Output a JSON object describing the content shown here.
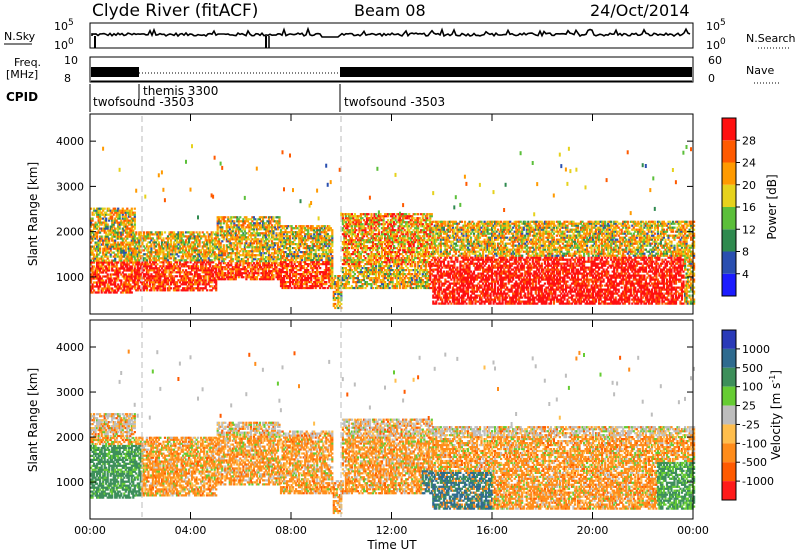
{
  "header": {
    "station": "Clyde River (fitACF)",
    "beam": "Beam 08",
    "date": "24/Oct/2014"
  },
  "panels": {
    "noise": {
      "left_label": "N.Sky",
      "left_ticks": [
        "10^5",
        "10^0"
      ],
      "right_ticks": [
        "10^5",
        "10^0"
      ],
      "right_label": "N.Search"
    },
    "freq": {
      "left_label_1": "Freq.",
      "left_label_2": "[MHz]",
      "left_ticks": [
        "10",
        "8"
      ],
      "right_ticks": [
        "60",
        "0"
      ],
      "right_label": "Nave"
    },
    "cpid": {
      "label": "CPID",
      "segments": [
        "twofsound -3503",
        "themis 3300",
        "twofsound -3503"
      ]
    }
  },
  "chart_data": [
    {
      "type": "heatmap",
      "name": "power",
      "ylabel": "Slant Range [km]",
      "xlabel": "",
      "x_ticks": [
        "00:00",
        "04:00",
        "08:00",
        "12:00",
        "16:00",
        "20:00",
        "00:00"
      ],
      "xlim_hours": [
        0,
        24
      ],
      "ylim_km": [
        180,
        4600
      ],
      "y_ticks": [
        1000,
        2000,
        3000,
        4000
      ],
      "colorbar": {
        "label": "Power [dB]",
        "ticks": [
          4,
          8,
          12,
          16,
          20,
          24,
          28
        ],
        "range": [
          0,
          32
        ],
        "colors": [
          "#1c1cff",
          "#2a4fb0",
          "#2f8a4f",
          "#5bbf3a",
          "#e6d21c",
          "#ff9a00",
          "#ff5a00",
          "#ff1010"
        ]
      }
    },
    {
      "type": "heatmap",
      "name": "velocity",
      "ylabel": "Slant Range [km]",
      "xlabel": "Time UT",
      "x_ticks": [
        "00:00",
        "04:00",
        "08:00",
        "12:00",
        "16:00",
        "20:00",
        "00:00"
      ],
      "xlim_hours": [
        0,
        24
      ],
      "ylim_km": [
        180,
        4600
      ],
      "y_ticks": [
        1000,
        2000,
        3000,
        4000
      ],
      "colorbar": {
        "label": "Velocity [m s^-1]",
        "ticks": [
          "1000",
          "500",
          "100",
          "25",
          "-25",
          "-100",
          "-500",
          "-1000"
        ],
        "colors": [
          "#2a3ab8",
          "#2f6b8f",
          "#3d8f5a",
          "#66cc33",
          "#bdbdbd",
          "#ffbe4d",
          "#ff8c1a",
          "#ff5a00",
          "#ff1a1a"
        ]
      }
    }
  ]
}
